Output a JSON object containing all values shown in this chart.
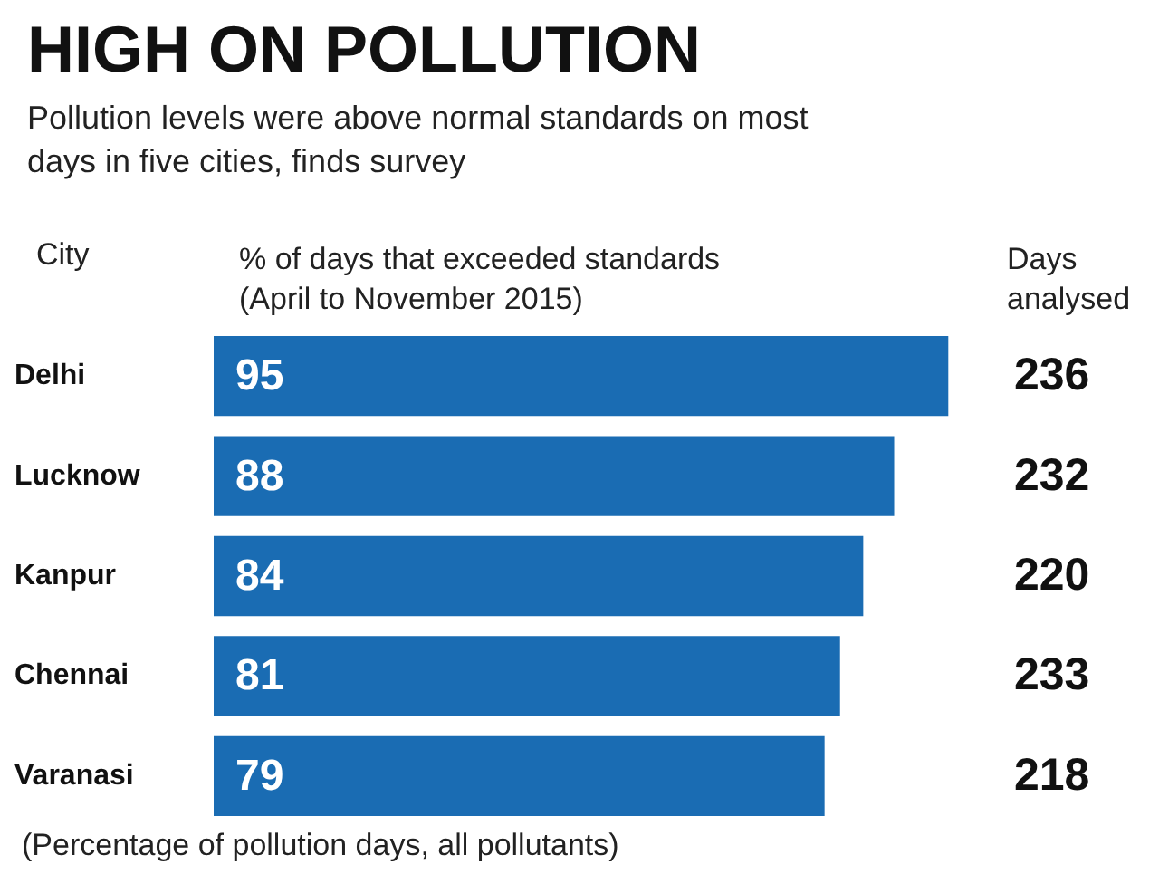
{
  "chart_data": {
    "type": "bar",
    "orientation": "horizontal",
    "title": "HIGH ON POLLUTION",
    "subtitle": "Pollution levels were above normal standards on most\ndays in five cities, finds survey",
    "ylabel": "City",
    "xlabel": "% of days that exceeded standards\n(April to November 2015)",
    "categories": [
      "Delhi",
      "Lucknow",
      "Kanpur",
      "Chennai",
      "Varanasi"
    ],
    "values": [
      95,
      88,
      84,
      81,
      79
    ],
    "color": "#1a6cb3",
    "data_labels": true,
    "tick_labels": "y",
    "annotations": [
      "Days analysed",
      "236",
      "232",
      "220",
      "233",
      "218",
      "(Percentage of pollution days, all pollutants)"
    ]
  }
}
